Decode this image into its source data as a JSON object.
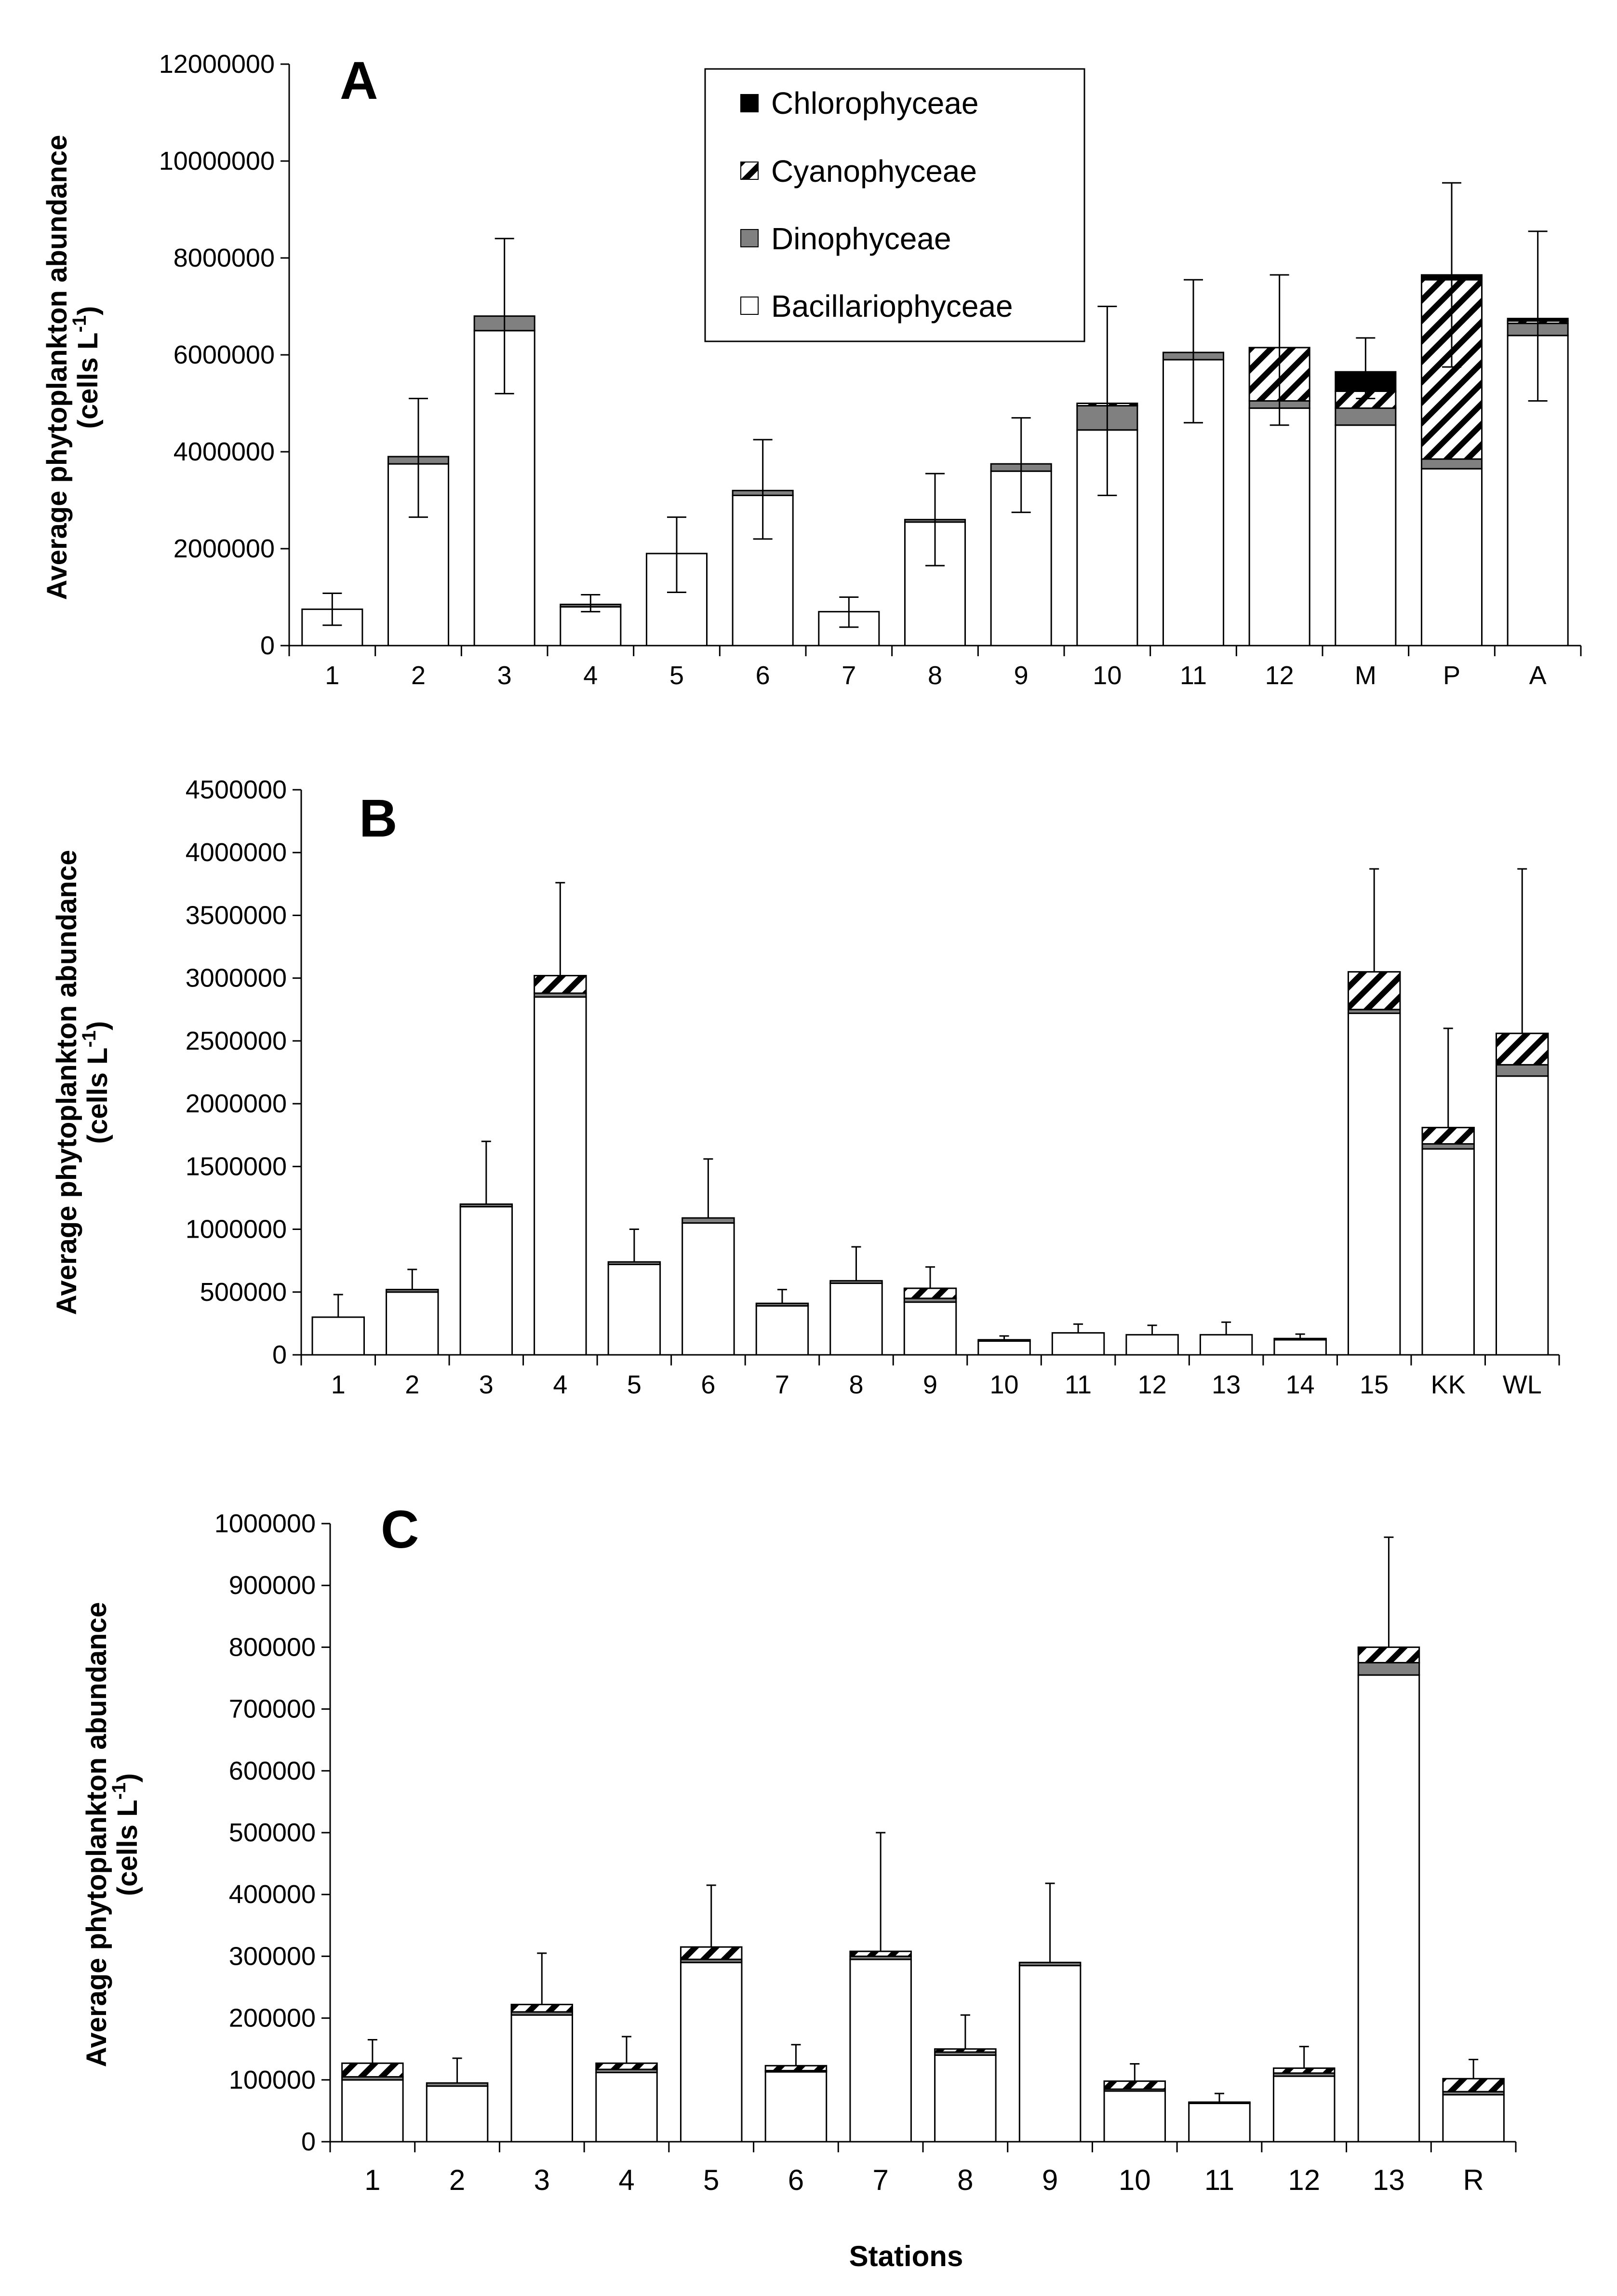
{
  "figure": {
    "x_title": "Stations",
    "legend": [
      {
        "name": "Chlorophyceae",
        "fill": "solid-black"
      },
      {
        "name": "Cyanophyceae",
        "fill": "diagonal-hatch"
      },
      {
        "name": "Dinophyceae",
        "fill": "gray"
      },
      {
        "name": "Bacillariophyceae",
        "fill": "white"
      }
    ],
    "colors": {
      "bacillariophyceae": "#ffffff",
      "dinophyceae": "#808080",
      "cyanophyceae_hatch": "#000000",
      "chlorophyceae": "#000000",
      "axis": "#000000"
    }
  },
  "chart_data": [
    {
      "type": "bar",
      "stacked": true,
      "panel_label": "A",
      "ylabel_line1": "Average phytoplankton abundance",
      "ylabel_line2": "(cells L",
      "ylabel_sup": "-1",
      "ylabel_close": ")",
      "ylim": [
        0,
        12000000
      ],
      "yticks": [
        0,
        2000000,
        4000000,
        6000000,
        8000000,
        10000000,
        12000000
      ],
      "ytick_labels": [
        "0",
        "2000000",
        "4000000",
        "6000000",
        "8000000",
        "10000000",
        "12000000"
      ],
      "categories": [
        "1",
        "2",
        "3",
        "4",
        "5",
        "6",
        "7",
        "8",
        "9",
        "10",
        "11",
        "12",
        "M",
        "P",
        "A"
      ],
      "series": [
        {
          "name": "Bacillariophyceae",
          "values": [
            750000,
            3750000,
            6500000,
            800000,
            1900000,
            3100000,
            700000,
            2550000,
            3600000,
            4450000,
            5900000,
            4900000,
            4550000,
            3650000,
            6400000
          ]
        },
        {
          "name": "Dinophyceae",
          "values": [
            0,
            150000,
            300000,
            50000,
            0,
            100000,
            0,
            50000,
            150000,
            500000,
            150000,
            150000,
            350000,
            200000,
            250000
          ]
        },
        {
          "name": "Cyanophyceae",
          "values": [
            0,
            0,
            0,
            0,
            0,
            0,
            0,
            0,
            0,
            50000,
            0,
            1100000,
            350000,
            3700000,
            50000
          ]
        },
        {
          "name": "Chlorophyceae",
          "values": [
            0,
            0,
            0,
            0,
            0,
            0,
            0,
            0,
            0,
            0,
            0,
            0,
            400000,
            100000,
            50000
          ]
        }
      ],
      "error_top": [
        1080000,
        5100000,
        8400000,
        1050000,
        2650000,
        4250000,
        1000000,
        3550000,
        4700000,
        7000000,
        7550000,
        7650000,
        6350000,
        9550000,
        8550000
      ],
      "error_bottom": [
        420000,
        2650000,
        5200000,
        700000,
        1100000,
        2200000,
        380000,
        1650000,
        2750000,
        3100000,
        4600000,
        4550000,
        5100000,
        5750000,
        5050000
      ]
    },
    {
      "type": "bar",
      "stacked": true,
      "panel_label": "B",
      "ylabel_line1": "Average phytoplankton abundance",
      "ylabel_line2": "(cells L",
      "ylabel_sup": "-1",
      "ylabel_close": ")",
      "ylim": [
        0,
        4500000
      ],
      "yticks": [
        0,
        500000,
        1000000,
        1500000,
        2000000,
        2500000,
        3000000,
        3500000,
        4000000,
        4500000
      ],
      "ytick_labels": [
        "0",
        "500000",
        "1000000",
        "1500000",
        "2000000",
        "2500000",
        "3000000",
        "3500000",
        "4000000",
        "4500000"
      ],
      "categories": [
        "1",
        "2",
        "3",
        "4",
        "5",
        "6",
        "7",
        "8",
        "9",
        "10",
        "11",
        "12",
        "13",
        "14",
        "15",
        "KK",
        "WL"
      ],
      "series": [
        {
          "name": "Bacillariophyceae",
          "values": [
            300000,
            500000,
            1180000,
            2850000,
            720000,
            1050000,
            390000,
            570000,
            420000,
            110000,
            175000,
            160000,
            160000,
            120000,
            2720000,
            1640000,
            2220000
          ]
        },
        {
          "name": "Dinophyceae",
          "values": [
            0,
            20000,
            20000,
            30000,
            20000,
            40000,
            20000,
            20000,
            30000,
            10000,
            0,
            0,
            0,
            10000,
            30000,
            40000,
            90000
          ]
        },
        {
          "name": "Cyanophyceae",
          "values": [
            0,
            0,
            0,
            140000,
            0,
            0,
            0,
            0,
            80000,
            0,
            0,
            0,
            0,
            0,
            300000,
            130000,
            250000
          ]
        }
      ],
      "error_top": [
        480000,
        680000,
        1700000,
        3760000,
        1000000,
        1560000,
        520000,
        860000,
        700000,
        150000,
        245000,
        235000,
        260000,
        165000,
        3870000,
        2600000,
        3870000
      ]
    },
    {
      "type": "bar",
      "stacked": true,
      "panel_label": "C",
      "ylabel_line1": "Average phytoplankton abundance",
      "ylabel_line2": "(cells L",
      "ylabel_sup": "-1",
      "ylabel_close": ")",
      "ylim": [
        0,
        1000000
      ],
      "yticks": [
        0,
        100000,
        200000,
        300000,
        400000,
        500000,
        600000,
        700000,
        800000,
        900000,
        1000000
      ],
      "ytick_labels": [
        "0",
        "100000",
        "200000",
        "300000",
        "400000",
        "500000",
        "600000",
        "700000",
        "800000",
        "900000",
        "1000000"
      ],
      "categories": [
        "1",
        "2",
        "3",
        "4",
        "5",
        "6",
        "7",
        "8",
        "9",
        "10",
        "11",
        "12",
        "13",
        "R"
      ],
      "series": [
        {
          "name": "Bacillariophyceae",
          "values": [
            100000,
            90000,
            205000,
            112000,
            290000,
            113000,
            295000,
            140000,
            285000,
            82000,
            62000,
            106000,
            755000,
            76000
          ]
        },
        {
          "name": "Dinophyceae",
          "values": [
            5000,
            5000,
            5000,
            5000,
            5000,
            2000,
            5000,
            5000,
            5000,
            3000,
            2000,
            5000,
            20000,
            5000
          ]
        },
        {
          "name": "Cyanophyceae",
          "values": [
            22000,
            0,
            12000,
            10000,
            20000,
            8000,
            8000,
            5000,
            0,
            13000,
            0,
            8000,
            25000,
            21000
          ]
        }
      ],
      "error_top": [
        165000,
        135000,
        305000,
        170000,
        415000,
        157000,
        500000,
        205000,
        418000,
        126000,
        78000,
        154000,
        978000,
        133000
      ]
    }
  ]
}
